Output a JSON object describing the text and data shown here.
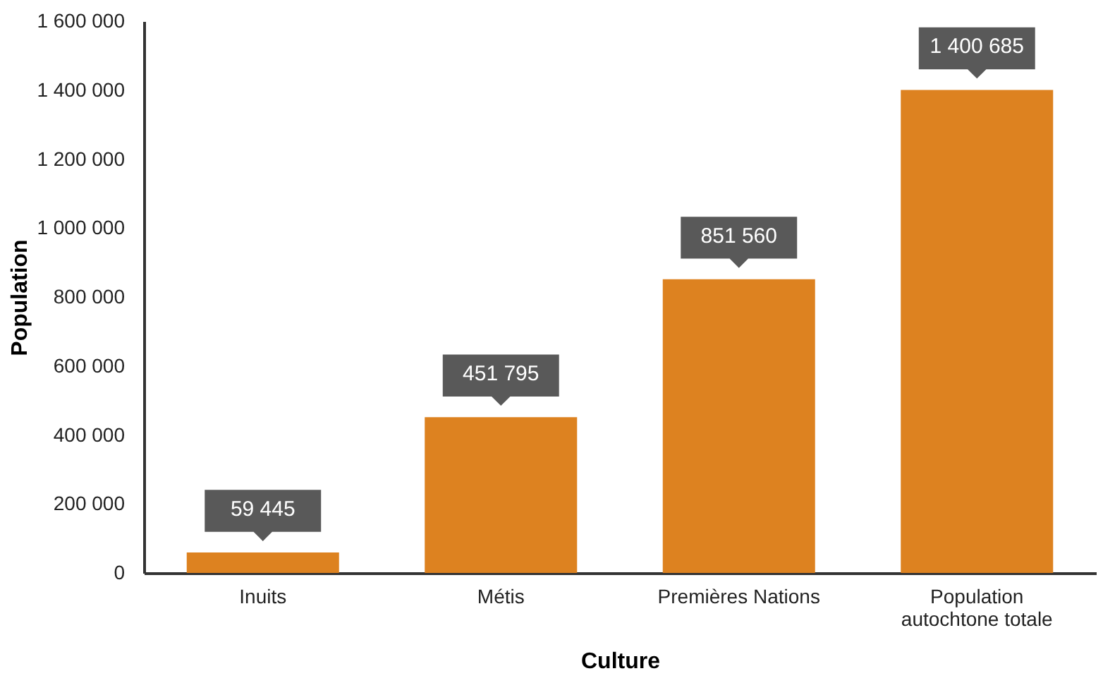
{
  "chart_data": {
    "type": "bar",
    "xlabel": "Culture",
    "ylabel": "Population",
    "categories": [
      "Inuits",
      "Métis",
      "Premières Nations",
      "Population autochtone totale"
    ],
    "values": [
      59445,
      451795,
      851560,
      1400685
    ],
    "value_labels": [
      "59 445",
      "451 795",
      "851 560",
      "1 400 685"
    ],
    "color": "#dd8220",
    "ylim": [
      0,
      1600000
    ],
    "yticks": [
      {
        "value": 0,
        "label": "0"
      },
      {
        "value": 200000,
        "label": "200 000"
      },
      {
        "value": 400000,
        "label": "400 000"
      },
      {
        "value": 600000,
        "label": "600 000"
      },
      {
        "value": 800000,
        "label": "800 000"
      },
      {
        "value": 1000000,
        "label": "1 000 000"
      },
      {
        "value": 1200000,
        "label": "1 200 000"
      },
      {
        "value": 1400000,
        "label": "1 400 000"
      },
      {
        "value": 1600000,
        "label": "1 600 000"
      }
    ],
    "grid": false
  }
}
